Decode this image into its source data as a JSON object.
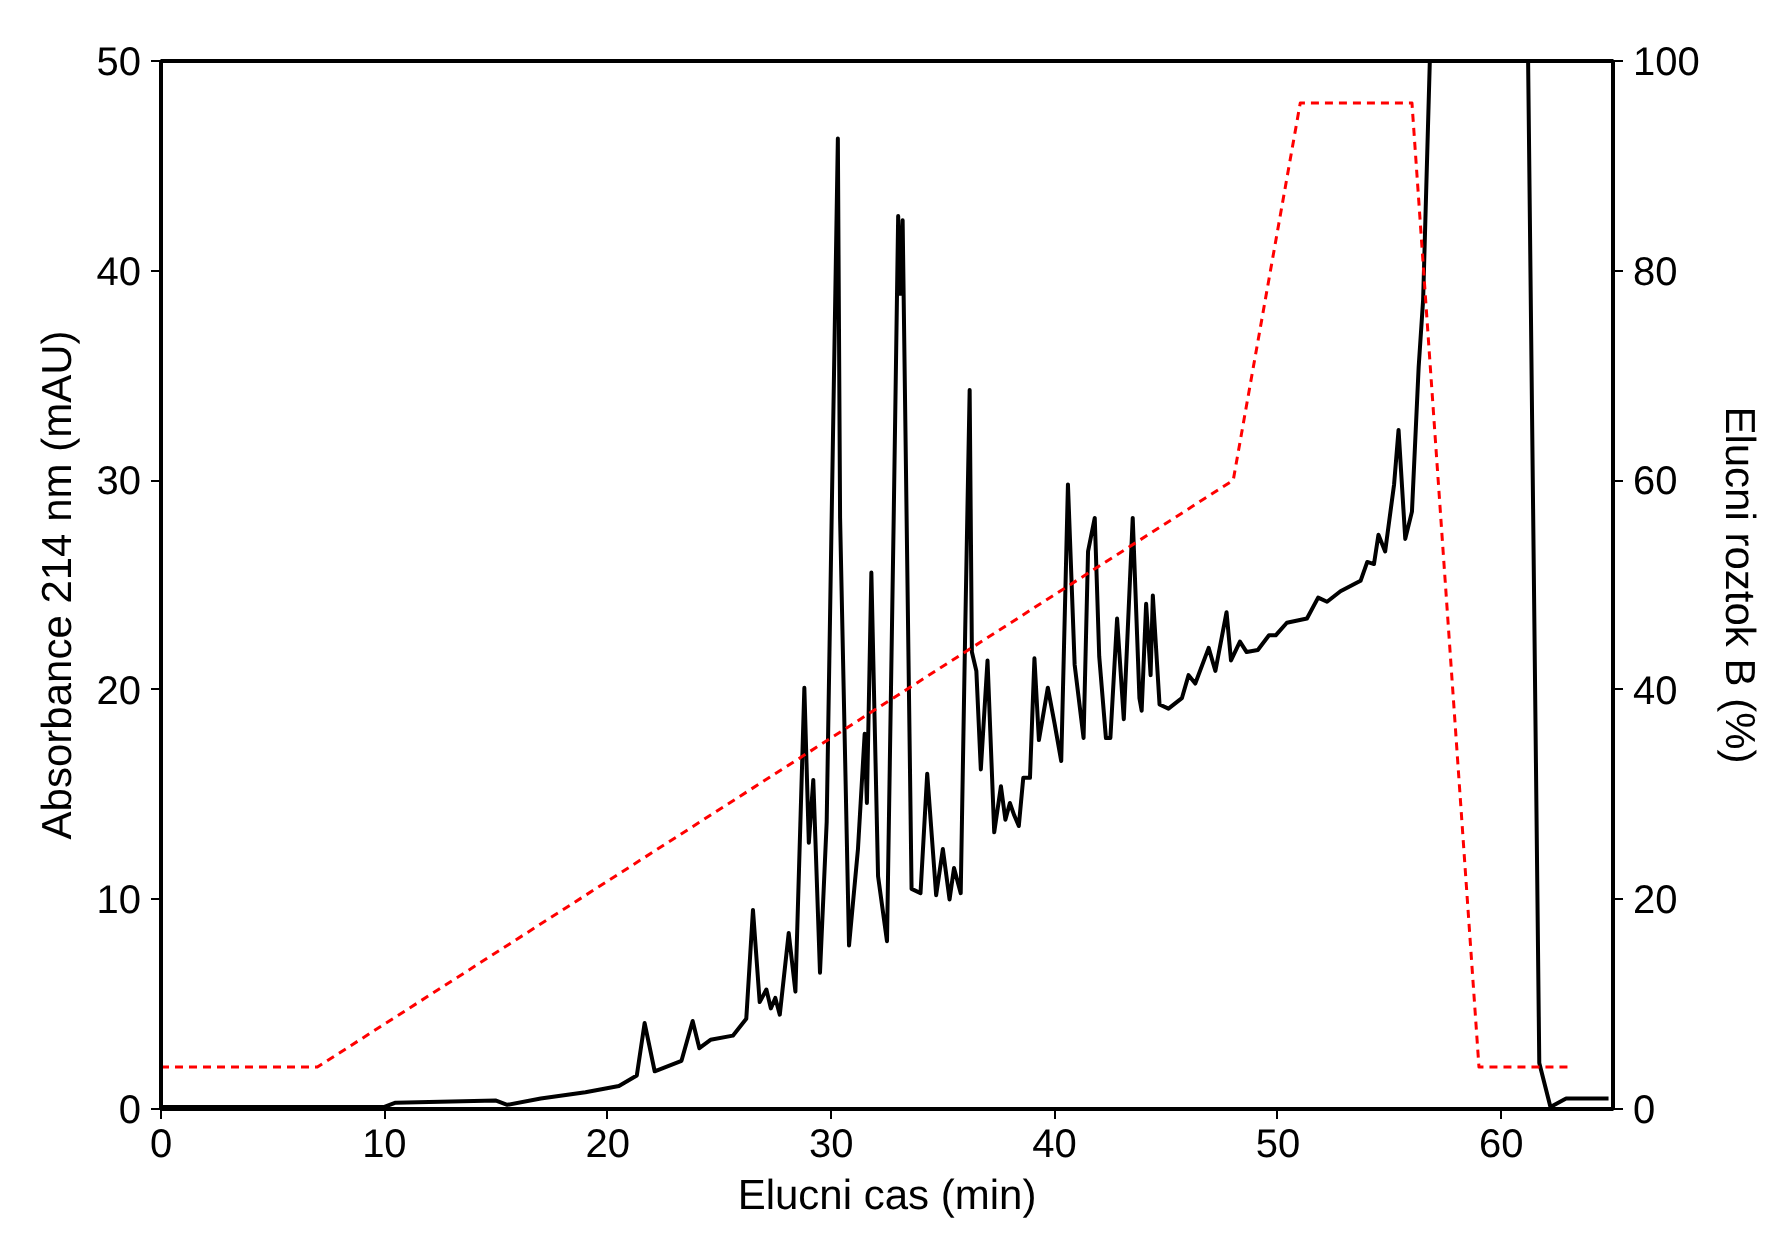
{
  "chart_data": {
    "type": "line",
    "xlabel": "Elucni cas (min)",
    "ylabel": "Absorbance 214 nm (mAU)",
    "y2label": "Elucni roztok B (%)",
    "xlim": [
      0,
      65
    ],
    "xticks": [
      0,
      10,
      20,
      30,
      40,
      50,
      60
    ],
    "ylim": [
      0,
      50
    ],
    "yticks": [
      0,
      10,
      20,
      30,
      40,
      50
    ],
    "y2lim": [
      0,
      100
    ],
    "y2ticks": [
      0,
      20,
      40,
      60,
      80,
      100
    ],
    "marker": "none",
    "series": [
      {
        "color": "#000000",
        "line_style": "solid",
        "x": [
          0,
          10,
          10.5,
          15,
          15.5,
          17,
          19,
          20.5,
          21.3,
          21.65,
          22.1,
          23.3,
          23.8,
          24.1,
          24.6,
          25.6,
          26.2,
          26.5,
          26.8,
          27.1,
          27.3,
          27.5,
          27.7,
          28.1,
          28.4,
          28.8,
          29.0,
          29.2,
          29.3,
          29.5,
          29.8,
          30.3,
          30.4,
          30.8,
          31.2,
          31.5,
          31.6,
          31.8,
          32.1,
          32.5,
          32.8,
          33.0,
          33.1,
          33.2,
          33.6,
          34.0,
          34.3,
          34.7,
          35.0,
          35.3,
          35.5,
          35.8,
          36.0,
          36.2,
          36.3,
          36.5,
          36.7,
          37.0,
          37.3,
          37.6,
          37.8,
          38.0,
          38.2,
          38.4,
          38.6,
          38.9,
          39.1,
          39.3,
          39.7,
          40.0,
          40.3,
          40.6,
          40.9,
          41.3,
          41.5,
          41.8,
          42.0,
          42.3,
          42.5,
          42.8,
          43.1,
          43.5,
          43.8,
          43.9,
          44.1,
          44.3,
          44.4,
          44.7,
          45.1,
          45.7,
          46.0,
          46.3,
          46.9,
          47.2,
          47.7,
          47.9,
          48.3,
          48.6,
          49.1,
          49.6,
          49.9,
          50.4,
          51.3,
          51.8,
          52.2,
          52.8,
          53.7,
          54.0,
          54.3,
          54.5,
          54.8,
          55.2,
          55.4,
          55.7,
          56.0,
          56.3,
          56.5,
          56.8,
          59.0,
          61.2,
          61.7,
          62.2,
          62.9,
          64.8
        ],
        "values": [
          0.1,
          0.1,
          0.3,
          0.4,
          0.2,
          0.5,
          0.8,
          1.1,
          1.6,
          4.1,
          1.8,
          2.3,
          4.2,
          2.9,
          3.3,
          3.5,
          4.3,
          9.5,
          5.1,
          5.7,
          4.8,
          5.3,
          4.5,
          8.4,
          5.6,
          20.1,
          12.7,
          15.7,
          12.7,
          6.5,
          13.7,
          46.3,
          28.2,
          7.8,
          12.4,
          17.9,
          14.6,
          25.6,
          11.1,
          8.0,
          28.2,
          42.6,
          38.9,
          42.4,
          10.5,
          10.3,
          16.0,
          10.2,
          12.4,
          10.0,
          11.5,
          10.3,
          22.8,
          34.3,
          21.8,
          20.9,
          16.2,
          21.4,
          13.2,
          15.4,
          13.8,
          14.6,
          14.0,
          13.5,
          15.8,
          15.8,
          21.5,
          17.6,
          20.1,
          18.4,
          16.6,
          29.8,
          21.2,
          17.7,
          26.6,
          28.2,
          21.6,
          17.7,
          17.7,
          23.4,
          18.6,
          28.2,
          19.6,
          19.0,
          24.1,
          20.7,
          24.5,
          19.3,
          19.1,
          19.6,
          20.7,
          20.3,
          22.0,
          20.9,
          23.7,
          21.4,
          22.3,
          21.8,
          21.9,
          22.6,
          22.6,
          23.2,
          23.4,
          24.4,
          24.2,
          24.7,
          25.2,
          26.1,
          26.0,
          27.4,
          26.6,
          29.8,
          32.4,
          27.2,
          28.5,
          35.4,
          38.6,
          50,
          null,
          50,
          2.2,
          0.1,
          0.5,
          0.5
        ]
      },
      {
        "color": "#ff0000",
        "line_style": "dashed",
        "axis": "y2",
        "x": [
          0,
          7,
          48,
          51,
          56,
          59,
          63
        ],
        "values": [
          4,
          4,
          60,
          96,
          96,
          4,
          4
        ]
      }
    ]
  }
}
